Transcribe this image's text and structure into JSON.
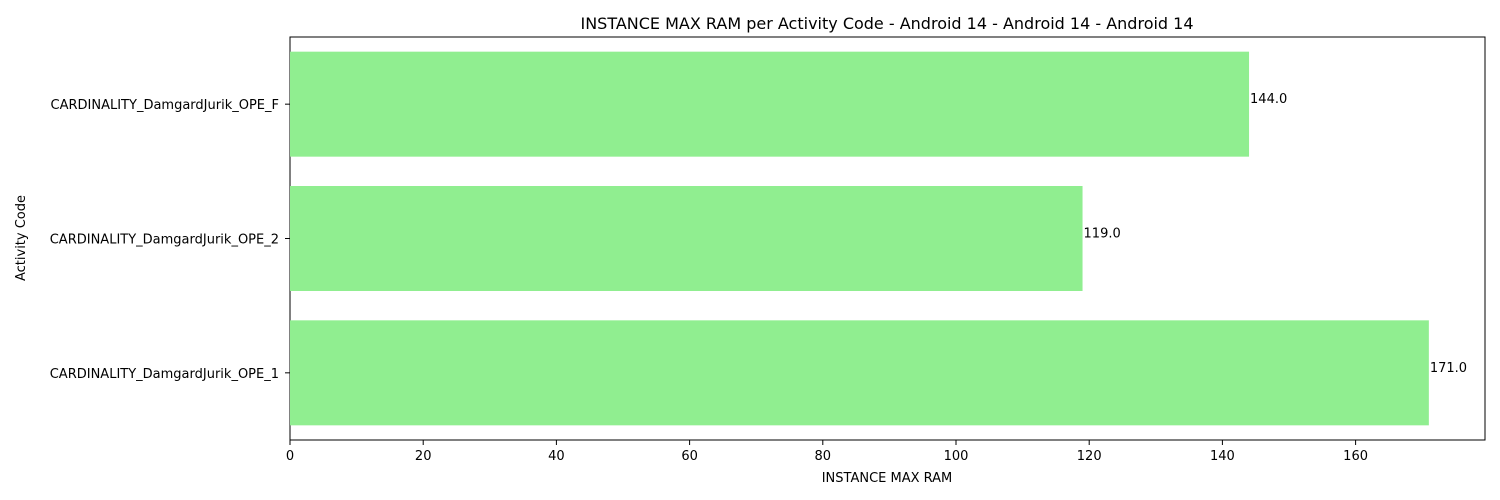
{
  "chart_data": {
    "type": "bar",
    "orientation": "horizontal",
    "title": "INSTANCE MAX RAM per Activity Code - Android 14 - Android 14 - Android 14",
    "xlabel": "INSTANCE MAX RAM",
    "ylabel": "Activity Code",
    "categories": [
      "CARDINALITY_DamgardJurik_OPE_F",
      "CARDINALITY_DamgardJurik_OPE_2",
      "CARDINALITY_DamgardJurik_OPE_1"
    ],
    "values": [
      144.0,
      119.0,
      171.0
    ],
    "value_labels": [
      "144.0",
      "119.0",
      "171.0"
    ],
    "xlim": [
      0,
      180
    ],
    "xticks": [
      0,
      20,
      40,
      60,
      80,
      100,
      120,
      140,
      160
    ],
    "bar_color": "#90ee90",
    "grid": false,
    "legend": "none"
  }
}
